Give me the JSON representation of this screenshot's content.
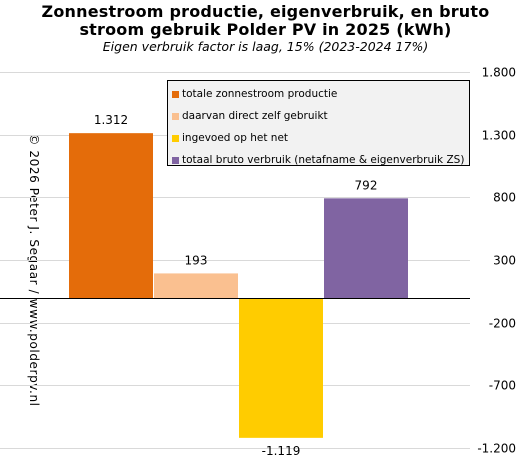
{
  "title_line1": "Zonnestroom productie, eigenverbruik,  en bruto",
  "title_line2": "stroom gebruik Polder PV in 2025 (kWh)",
  "subtitle": "Eigen verbruik factor is laag, 15% (2023-2024 17%)",
  "credit": "© 2026 Peter J. Segaar / www.polderpv.nl",
  "chart_data": {
    "type": "bar",
    "ylim": [
      -1200,
      1800
    ],
    "yticks": [
      1800,
      1300,
      800,
      300,
      -200,
      -700,
      -1200
    ],
    "ytick_labels": [
      "1.800",
      "1.300",
      "800",
      "300",
      "-200",
      "-700",
      "-1.200"
    ],
    "grid": true,
    "legend_position": "top-right",
    "series": [
      {
        "name": "totale zonnestroom productie",
        "value": 1312,
        "label": "1.312",
        "color": "#e46c0a"
      },
      {
        "name": "daarvan direct zelf gebruikt",
        "value": 193,
        "label": "193",
        "color": "#fac090"
      },
      {
        "name": "ingevoed op het net",
        "value": -1119,
        "label": "-1.119",
        "color": "#ffcc00"
      },
      {
        "name": "totaal bruto verbruik (netafname & eigenverbruik ZS)",
        "value": 792,
        "label": "792",
        "color": "#8064a2"
      }
    ]
  }
}
